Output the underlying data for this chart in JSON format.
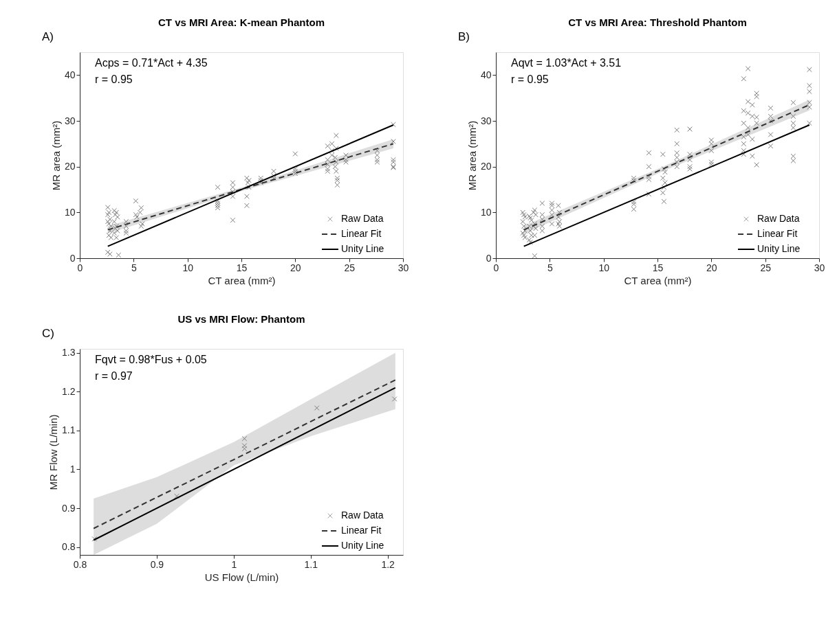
{
  "chart_data": [
    {
      "type": "scatter",
      "title": "CT vs MRI Area: K-mean Phantom",
      "xlabel": "CT area (mm²)",
      "ylabel": "MR area (mm²)",
      "xlim": [
        0,
        30
      ],
      "ylim": [
        0,
        45
      ],
      "xticks": [
        0,
        5,
        10,
        15,
        20,
        25,
        30
      ],
      "yticks": [
        0,
        10,
        20,
        30,
        40
      ],
      "grid": false,
      "legend": "bottom right",
      "annotations": [
        "A)",
        "Acps = 0.71*Act + 4.35",
        "r = 0.95"
      ],
      "series": [
        {
          "name": "Raw Data",
          "type": "scatter",
          "marker": "cross",
          "color": "#7f7f7f",
          "x": [
            2.6,
            2.7,
            2.6,
            2.8,
            2.6,
            2.7,
            2.9,
            2.8,
            2.7,
            2.9,
            2.6,
            2.8,
            3.2,
            3.4,
            3.3,
            3.5,
            3.2,
            3.4,
            3.3,
            3.5,
            3.2,
            3.4,
            3.6,
            4.3,
            4.3,
            4.3,
            4.3,
            5.2,
            5.2,
            5.3,
            5.7,
            5.6,
            5.8,
            5.7,
            12.8,
            12.8,
            12.8,
            12.8,
            12.8,
            14.2,
            14.2,
            14.2,
            14.2,
            14.2,
            15.5,
            15.7,
            15.6,
            15.7,
            15.5,
            15.5,
            16.8,
            16.8,
            16.8,
            18,
            18,
            18,
            20,
            20,
            20,
            20,
            23,
            23,
            23,
            23,
            23,
            23.4,
            23.4,
            23.4,
            23.8,
            23.8,
            23.7,
            23.8,
            23.7,
            23.8,
            23.9,
            23.9,
            23.9,
            24.7,
            24.7,
            24.7,
            27.6,
            27.6,
            27.6,
            27.6,
            29.1,
            29.1,
            29.1,
            29.1,
            29.1,
            29.1
          ],
          "values": [
            11.1,
            10,
            9.5,
            8.5,
            8,
            7.5,
            7,
            6,
            5,
            4.5,
            1.3,
            0.9,
            10.4,
            10,
            9.5,
            9,
            8,
            7,
            6.5,
            6,
            5.5,
            4.5,
            0.7,
            8,
            7,
            6,
            5.5,
            12.5,
            9.5,
            9,
            11,
            10,
            7.5,
            7,
            15.5,
            12.5,
            12,
            11.5,
            11,
            16.5,
            15.5,
            14.5,
            13.5,
            8.3,
            17.5,
            17,
            16.5,
            15.5,
            13.5,
            11.5,
            17.5,
            17,
            16.5,
            19,
            18,
            17.5,
            22.8,
            19.5,
            19,
            18.5,
            24.5,
            21.5,
            20.5,
            19.5,
            19,
            25,
            23.5,
            22.5,
            26.8,
            24,
            22,
            21,
            20,
            19,
            17.5,
            17,
            16,
            22.5,
            21.5,
            21,
            23.5,
            22.5,
            21.5,
            21,
            29.2,
            25.5,
            21.5,
            21,
            20,
            19.8
          ]
        },
        {
          "name": "Linear Fit",
          "type": "line",
          "line_style": "dashed",
          "color": "#333333",
          "x": [
            2.6,
            15.5,
            29.1
          ],
          "values": [
            6.2,
            15.4,
            25.0
          ],
          "lower": [
            5.4,
            15.0,
            24.0
          ],
          "upper": [
            7.0,
            15.8,
            26.0
          ]
        },
        {
          "name": "Unity Line",
          "type": "line",
          "line_style": "solid",
          "color": "#000000",
          "x": [
            2.6,
            29.1
          ],
          "values": [
            2.6,
            29.1
          ]
        }
      ]
    },
    {
      "type": "scatter",
      "title": "CT vs MRI Area: Threshold Phantom",
      "xlabel": "CT area (mm²)",
      "ylabel": "MR area (mm²)",
      "xlim": [
        0,
        30
      ],
      "ylim": [
        0,
        45
      ],
      "xticks": [
        0,
        5,
        10,
        15,
        20,
        25,
        30
      ],
      "yticks": [
        0,
        10,
        20,
        30,
        40
      ],
      "grid": false,
      "legend": "bottom right",
      "annotations": [
        "B)",
        "Aqvt = 1.03*Act + 3.51",
        "r = 0.95"
      ],
      "series": [
        {
          "name": "Raw Data",
          "type": "scatter",
          "marker": "cross",
          "color": "#7f7f7f",
          "x": [
            2.5,
            2.6,
            2.7,
            2.5,
            2.6,
            2.7,
            2.5,
            2.6,
            2.7,
            3.1,
            3.2,
            3.3,
            3.1,
            3.2,
            3.3,
            3.1,
            3.2,
            3.6,
            3.5,
            3.7,
            3.6,
            3.5,
            3.7,
            3.6,
            3.6,
            4.3,
            4.3,
            4.3,
            4.3,
            4.3,
            5.2,
            5.2,
            5.2,
            5.2,
            5.2,
            5.8,
            5.9,
            5.8,
            5.9,
            5.8,
            5.9,
            12.8,
            12.8,
            12.8,
            12.8,
            12.8,
            14.2,
            14.2,
            14.2,
            14.2,
            14.2,
            15.5,
            15.6,
            15.7,
            15.5,
            15.7,
            15.6,
            15.5,
            15.6,
            16.8,
            16.8,
            16.8,
            16.8,
            16.8,
            16.8,
            18,
            18,
            18,
            18,
            18,
            20,
            20,
            20,
            20,
            20,
            23,
            23,
            23,
            23,
            23,
            23,
            23,
            23.4,
            23.4,
            23.4,
            23.4,
            23.4,
            23.8,
            23.8,
            23.8,
            23.8,
            24.2,
            24.2,
            24.2,
            24.2,
            24.2,
            25.5,
            25.5,
            25.5,
            25.5,
            25.5,
            27.6,
            27.6,
            27.6,
            27.6,
            27.6,
            27.6,
            29.1,
            29.1,
            29.1,
            29.1,
            29.1,
            29.1
          ],
          "values": [
            10,
            9.5,
            9,
            8,
            7,
            6,
            5.5,
            5,
            4.5,
            9.2,
            8.8,
            8.3,
            7,
            6,
            5,
            4,
            3.5,
            10.5,
            10,
            9.5,
            7.5,
            7,
            6.5,
            5,
            0.5,
            12,
            9.5,
            8.5,
            7,
            6,
            12,
            11.5,
            10.5,
            9.5,
            7.5,
            11.5,
            10,
            9,
            8,
            7.5,
            7,
            17.5,
            17,
            12.3,
            11.8,
            10.7,
            23,
            20,
            17.8,
            17.2,
            14,
            22.7,
            19.5,
            18.8,
            17.5,
            16.5,
            15.5,
            14.3,
            12.4,
            28,
            25,
            23,
            22,
            21,
            20,
            28.2,
            22.7,
            21.5,
            20,
            19.5,
            25.8,
            25,
            23.5,
            21,
            20.5,
            39.2,
            32.2,
            29.5,
            26.5,
            25,
            23.5,
            22.7,
            41.4,
            34.2,
            31.7,
            28.5,
            27,
            33.5,
            31,
            26,
            22.3,
            36,
            35.3,
            30.8,
            29.5,
            20.4,
            32.8,
            31,
            30,
            27,
            24.5,
            34,
            31,
            29.5,
            28.5,
            22.3,
            21.3,
            41.2,
            37.7,
            36.4,
            34,
            33,
            29.5
          ]
        },
        {
          "name": "Linear Fit",
          "type": "line",
          "line_style": "dashed",
          "color": "#333333",
          "x": [
            2.6,
            15.5,
            29.1
          ],
          "values": [
            6.2,
            19.5,
            33.5
          ],
          "lower": [
            5.3,
            19.0,
            32.3
          ],
          "upper": [
            7.1,
            20.0,
            34.6
          ]
        },
        {
          "name": "Unity Line",
          "type": "line",
          "line_style": "solid",
          "color": "#000000",
          "x": [
            2.6,
            29.1
          ],
          "values": [
            2.6,
            29.1
          ]
        }
      ]
    },
    {
      "type": "scatter",
      "title": "US vs MRI Flow: Phantom",
      "xlabel": "US Flow (L/min)",
      "ylabel": "MR Flow (L/min)",
      "xlim": [
        0.8,
        1.22
      ],
      "ylim": [
        0.78,
        1.31
      ],
      "xticks": [
        0.8,
        0.9,
        1,
        1.1,
        1.2
      ],
      "yticks": [
        0.8,
        0.9,
        1,
        1.1,
        1.2,
        1.3
      ],
      "grid": false,
      "legend": "bottom right",
      "annotations": [
        "C)",
        "Fqvt = 0.98*Fus + 0.05",
        "r = 0.97"
      ],
      "series": [
        {
          "name": "Raw Data",
          "type": "scatter",
          "marker": "cross",
          "color": "#7f7f7f",
          "x": [
            0.819,
            0.926,
            1.014,
            1.014,
            1.014,
            1.108,
            1.209
          ],
          "values": [
            0.821,
            0.931,
            1.079,
            1.061,
            1.053,
            1.158,
            1.181
          ]
        },
        {
          "name": "Linear Fit",
          "type": "line",
          "line_style": "dashed",
          "color": "#333333",
          "x": [
            0.818,
            0.9,
            1.0,
            1.1,
            1.21
          ],
          "values": [
            0.848,
            0.928,
            1.025,
            1.123,
            1.23
          ],
          "lower": [
            0.78,
            0.86,
            1.01,
            1.085,
            1.155
          ],
          "upper": [
            0.925,
            0.98,
            1.07,
            1.18,
            1.3
          ]
        },
        {
          "name": "Unity Line",
          "type": "line",
          "line_style": "solid",
          "color": "#000000",
          "x": [
            0.818,
            1.21
          ],
          "values": [
            0.818,
            1.21
          ]
        }
      ]
    }
  ]
}
